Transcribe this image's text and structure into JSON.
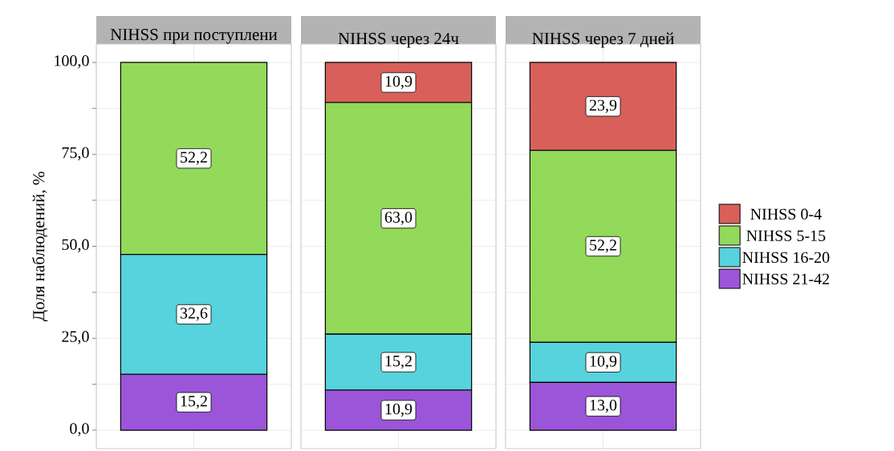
{
  "chart_data": {
    "type": "bar",
    "categories": [
      "NIHSS при поступлени",
      "NIHSS через 24ч",
      "NIHSS через 7 дней"
    ],
    "ylabel": "Доля наблюдений, %",
    "stacked": true,
    "grid": true,
    "legend": "right",
    "ylim": [
      -5,
      105
    ],
    "yticks": [
      {
        "value": 0,
        "label": "0,0"
      },
      {
        "value": 12.5,
        "label": null
      },
      {
        "value": 25,
        "label": "25,0"
      },
      {
        "value": 37.5,
        "label": null
      },
      {
        "value": 50,
        "label": "50,0"
      },
      {
        "value": 62.5,
        "label": null
      },
      {
        "value": 75,
        "label": "75,0"
      },
      {
        "value": 87.5,
        "label": null
      },
      {
        "value": 100,
        "label": "100,0"
      }
    ],
    "series": [
      {
        "name": "NIHSS 21-42",
        "color": "#9b55d9",
        "values": [
          15.2,
          10.9,
          13.0
        ],
        "value_labels": [
          "15,2",
          "10,9",
          "13,0"
        ]
      },
      {
        "name": "NIHSS 16-20",
        "color": "#56d3dc",
        "values": [
          32.6,
          15.2,
          10.9
        ],
        "value_labels": [
          "32,6",
          "15,2",
          "10,9"
        ]
      },
      {
        "name": "NIHSS 5-15",
        "color": "#93d95a",
        "values": [
          52.2,
          63.0,
          52.2
        ],
        "value_labels": [
          "52,2",
          "63,0",
          "52,2"
        ]
      },
      {
        "name": "NIHSS 0-4",
        "color": "#d9605a",
        "values": [
          null,
          10.9,
          23.9
        ],
        "value_labels": [
          null,
          "10,9",
          "23,9"
        ]
      }
    ]
  }
}
